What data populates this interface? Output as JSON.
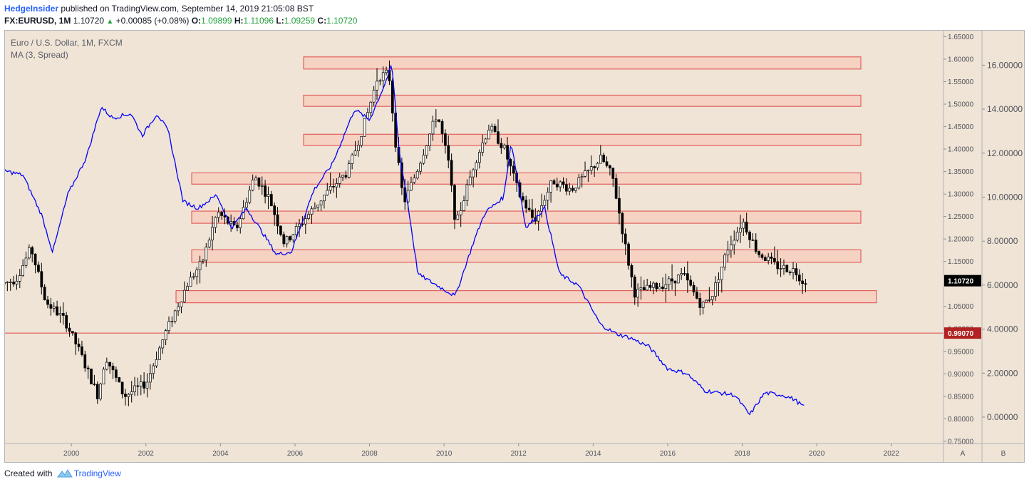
{
  "header": {
    "author": "HedgeInsider",
    "published": "published on TradingView.com, September 14, 2019 21:05:08 BST",
    "symbol": "FX:EURUSD, 1M",
    "last": "1.10720",
    "change": "+0.00085 (+0.08%)",
    "o_label": "O:",
    "o_value": "1.09899",
    "h_label": "H:",
    "h_value": "1.11096",
    "l_label": "L:",
    "l_value": "1.09259",
    "c_label": "C:",
    "c_value": "1.10720"
  },
  "legend": {
    "line1": "Euro / U.S. Dollar, 1M, FXCM",
    "line2": "MA (3, Spread)"
  },
  "footer": {
    "created": "Created with",
    "brand": "TradingView"
  },
  "colors": {
    "background": "#efe4d5",
    "candle": "#000000",
    "ma_line": "#0000ff",
    "zone_fill": "#f5d2c2",
    "zone_border": "#e04848",
    "support_line": "#e04848",
    "price_tag": "#000000",
    "level_tag": "#b22222"
  },
  "chart_data": {
    "type": "candlestick",
    "symbol": "EURUSD",
    "timeframe": "1M",
    "x_ticks": [
      "2000",
      "2002",
      "2004",
      "2006",
      "2008",
      "2010",
      "2012",
      "2014",
      "2016",
      "2018",
      "2020",
      "2022"
    ],
    "x_range": [
      1998.2,
      2023.4
    ],
    "left_axis": {
      "ticks": [
        "0.75000",
        "0.80000",
        "0.85000",
        "0.90000",
        "0.95000",
        "1.00000",
        "1.05000",
        "1.10000",
        "1.15000",
        "1.20000",
        "1.25000",
        "1.30000",
        "1.35000",
        "1.40000",
        "1.45000",
        "1.50000",
        "1.55000",
        "1.60000",
        "1.65000"
      ],
      "range": [
        0.745,
        1.665
      ]
    },
    "right_axis": {
      "ticks": [
        "0.00000",
        "2.00000",
        "4.00000",
        "6.00000",
        "8.00000",
        "10.00000",
        "12.00000",
        "14.00000",
        "16.00000"
      ],
      "range": [
        -1.2,
        17.6
      ]
    },
    "current_price": "1.10720",
    "current_price_value": 1.1072,
    "support_level": "0.99070",
    "support_level_value": 0.9907,
    "pane_labels": [
      "A",
      "B"
    ],
    "price_keypoints": [
      [
        1998.2,
        1.1
      ],
      [
        1998.6,
        1.11
      ],
      [
        1999.0,
        1.18
      ],
      [
        1999.4,
        1.06
      ],
      [
        1999.9,
        1.02
      ],
      [
        2000.3,
        0.95
      ],
      [
        2000.8,
        0.85
      ],
      [
        2001.0,
        0.94
      ],
      [
        2001.5,
        0.85
      ],
      [
        2002.1,
        0.88
      ],
      [
        2002.6,
        0.99
      ],
      [
        2003.2,
        1.1
      ],
      [
        2003.6,
        1.15
      ],
      [
        2004.0,
        1.26
      ],
      [
        2004.5,
        1.22
      ],
      [
        2005.0,
        1.34
      ],
      [
        2005.4,
        1.29
      ],
      [
        2005.8,
        1.19
      ],
      [
        2006.3,
        1.24
      ],
      [
        2006.9,
        1.3
      ],
      [
        2007.5,
        1.35
      ],
      [
        2008.0,
        1.47
      ],
      [
        2008.3,
        1.56
      ],
      [
        2008.6,
        1.57
      ],
      [
        2008.8,
        1.4
      ],
      [
        2009.0,
        1.28
      ],
      [
        2009.3,
        1.34
      ],
      [
        2009.9,
        1.48
      ],
      [
        2010.2,
        1.37
      ],
      [
        2010.4,
        1.23
      ],
      [
        2010.9,
        1.37
      ],
      [
        2011.3,
        1.45
      ],
      [
        2011.7,
        1.4
      ],
      [
        2012.1,
        1.3
      ],
      [
        2012.5,
        1.24
      ],
      [
        2013.0,
        1.33
      ],
      [
        2013.5,
        1.31
      ],
      [
        2014.3,
        1.38
      ],
      [
        2014.6,
        1.34
      ],
      [
        2015.0,
        1.16
      ],
      [
        2015.2,
        1.08
      ],
      [
        2016.0,
        1.1
      ],
      [
        2016.5,
        1.12
      ],
      [
        2017.0,
        1.05
      ],
      [
        2017.3,
        1.08
      ],
      [
        2017.7,
        1.18
      ],
      [
        2018.1,
        1.24
      ],
      [
        2018.5,
        1.17
      ],
      [
        2019.0,
        1.14
      ],
      [
        2019.5,
        1.13
      ],
      [
        2019.7,
        1.107
      ]
    ],
    "ma_spread_keypoints": [
      [
        1998.2,
        11.2
      ],
      [
        1998.7,
        11.0
      ],
      [
        1999.2,
        9.2
      ],
      [
        1999.5,
        7.5
      ],
      [
        1999.9,
        10.1
      ],
      [
        2000.4,
        11.8
      ],
      [
        2000.8,
        14.1
      ],
      [
        2001.1,
        13.6
      ],
      [
        2001.6,
        13.8
      ],
      [
        2001.9,
        12.8
      ],
      [
        2002.3,
        13.8
      ],
      [
        2002.6,
        13.0
      ],
      [
        2003.0,
        9.8
      ],
      [
        2003.4,
        9.5
      ],
      [
        2003.9,
        10.1
      ],
      [
        2004.3,
        8.6
      ],
      [
        2004.7,
        9.5
      ],
      [
        2005.2,
        8.2
      ],
      [
        2005.5,
        7.4
      ],
      [
        2005.9,
        7.5
      ],
      [
        2006.5,
        10.3
      ],
      [
        2007.0,
        11.5
      ],
      [
        2007.6,
        14.0
      ],
      [
        2008.0,
        13.5
      ],
      [
        2008.4,
        15.1
      ],
      [
        2008.6,
        16.0
      ],
      [
        2008.8,
        12.0
      ],
      [
        2009.0,
        10.0
      ],
      [
        2009.3,
        6.5
      ],
      [
        2009.8,
        6.0
      ],
      [
        2010.3,
        5.5
      ],
      [
        2010.8,
        8.0
      ],
      [
        2011.1,
        9.3
      ],
      [
        2011.6,
        10.0
      ],
      [
        2011.8,
        12.5
      ],
      [
        2012.2,
        8.6
      ],
      [
        2012.7,
        9.5
      ],
      [
        2013.1,
        6.5
      ],
      [
        2013.6,
        6.0
      ],
      [
        2014.2,
        4.2
      ],
      [
        2014.6,
        3.8
      ],
      [
        2015.0,
        3.6
      ],
      [
        2015.5,
        3.2
      ],
      [
        2016.0,
        2.2
      ],
      [
        2016.5,
        2.0
      ],
      [
        2017.0,
        1.2
      ],
      [
        2017.8,
        1.0
      ],
      [
        2018.2,
        0.1
      ],
      [
        2018.6,
        1.1
      ],
      [
        2019.1,
        1.0
      ],
      [
        2019.4,
        0.8
      ],
      [
        2019.7,
        0.4
      ]
    ],
    "zones": [
      {
        "low": 1.578,
        "high": 1.605
      },
      {
        "low": 1.495,
        "high": 1.52
      },
      {
        "low": 1.408,
        "high": 1.433
      },
      {
        "low": 1.322,
        "high": 1.347
      },
      {
        "low": 1.235,
        "high": 1.262
      },
      {
        "low": 1.148,
        "high": 1.176
      },
      {
        "low": 1.058,
        "high": 1.085
      }
    ]
  }
}
